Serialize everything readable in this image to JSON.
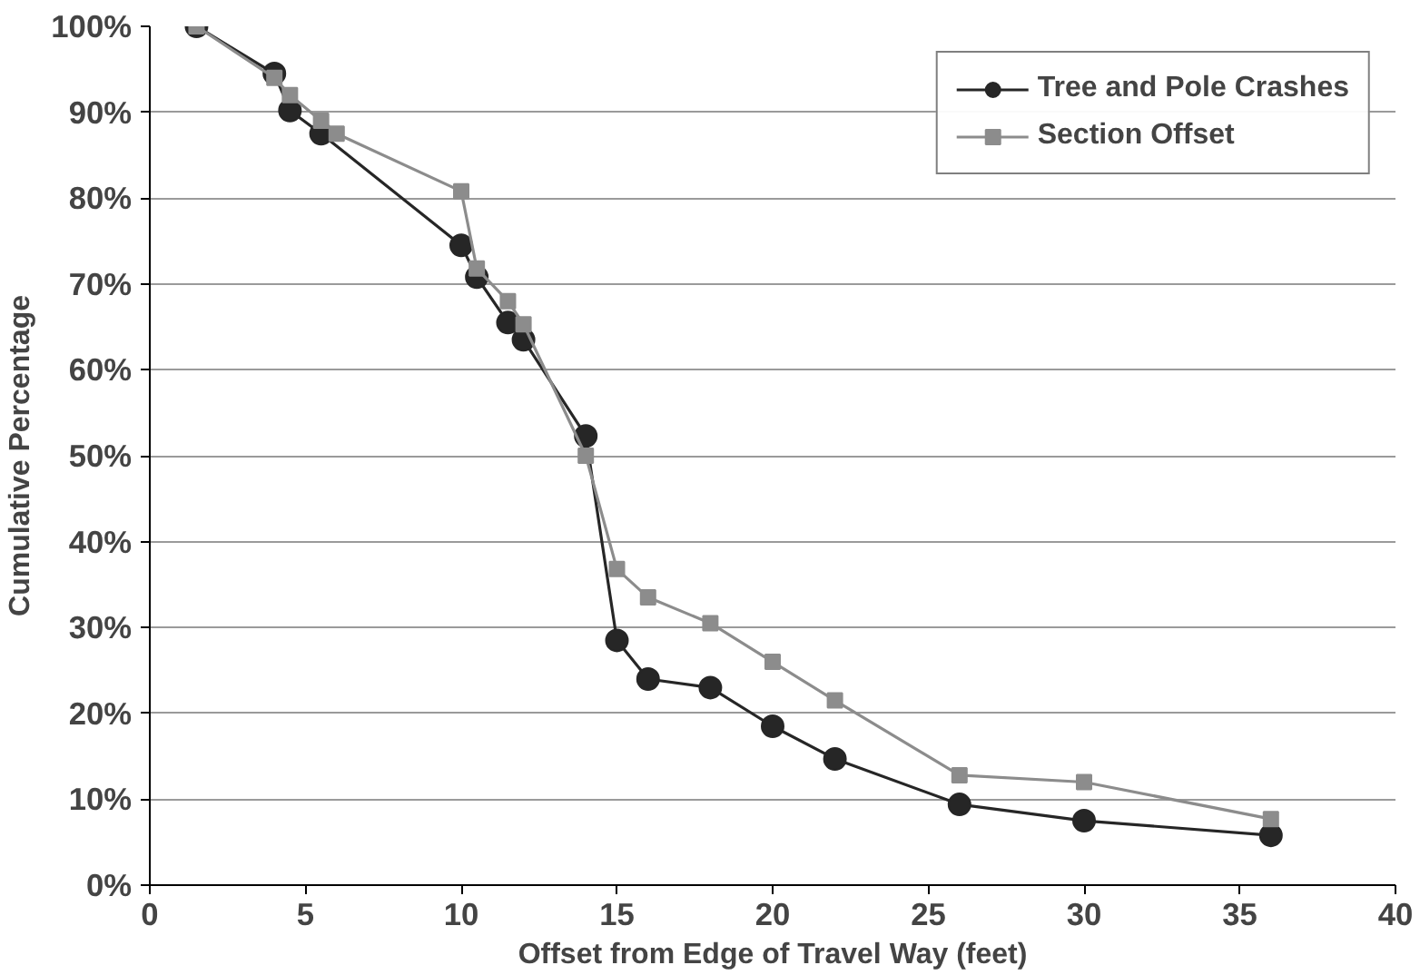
{
  "chart_data": {
    "type": "line",
    "xlabel": "Offset from Edge of Travel Way (feet)",
    "ylabel": "Cumulative Percentage",
    "xlim": [
      0,
      40
    ],
    "xticks": [
      0,
      5,
      10,
      15,
      20,
      25,
      30,
      35,
      40
    ],
    "ylim": [
      0,
      100
    ],
    "yticks": [
      {
        "value": 0,
        "label": "0%"
      },
      {
        "value": 10,
        "label": "10%"
      },
      {
        "value": 20,
        "label": "20%"
      },
      {
        "value": 30,
        "label": "30%"
      },
      {
        "value": 40,
        "label": "40%"
      },
      {
        "value": 50,
        "label": "50%"
      },
      {
        "value": 60,
        "label": "60%"
      },
      {
        "value": 70,
        "label": "70%"
      },
      {
        "value": 80,
        "label": "80%"
      },
      {
        "value": 90,
        "label": "90%"
      },
      {
        "value": 100,
        "label": "100%"
      }
    ],
    "grid": "y",
    "legend": "top right",
    "line_style": "solid",
    "series": [
      {
        "name": "Tree and Pole Crashes",
        "color": "#262626",
        "marker": "circle",
        "x": [
          1.5,
          4,
          4.5,
          5.5,
          10,
          10.5,
          11.5,
          12,
          14,
          15,
          16,
          18,
          20,
          22,
          26,
          30,
          36
        ],
        "values": [
          100,
          94.5,
          90.2,
          87.5,
          74.5,
          70.8,
          65.5,
          63.5,
          52.3,
          28.5,
          24,
          23,
          18.5,
          14.7,
          9.4,
          7.5,
          5.8
        ]
      },
      {
        "name": "Section Offset",
        "color": "#8c8c8c",
        "marker": "square",
        "x": [
          1.5,
          4,
          4.5,
          5.5,
          6,
          10,
          10.5,
          11.5,
          12,
          14,
          15,
          16,
          18,
          20,
          22,
          26,
          30,
          36
        ],
        "values": [
          100,
          94,
          92,
          89,
          87.5,
          80.8,
          71.8,
          68,
          65.3,
          50,
          36.8,
          33.5,
          30.5,
          26,
          21.5,
          12.8,
          12,
          7.7
        ]
      }
    ]
  }
}
